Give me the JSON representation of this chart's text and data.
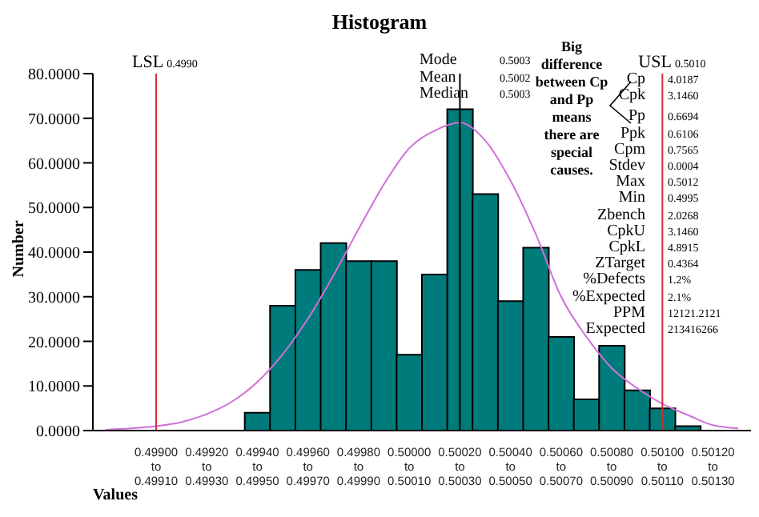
{
  "chart_data": {
    "type": "bar",
    "title": "Histogram",
    "xlabel": "Values",
    "ylabel": "Number",
    "color": "#007b7b",
    "categories": [
      null,
      null,
      "0.49900 to 0.49910",
      null,
      "0.49920 to 0.49930",
      null,
      "0.49940 to 0.49950",
      null,
      "0.49960 to 0.49970",
      null,
      "0.49980 to 0.49990",
      null,
      "0.50000 to 0.50010",
      null,
      "0.50020 to 0.50030",
      null,
      "0.50040 to 0.50050",
      null,
      "0.50060 to 0.50070",
      null,
      "0.50080 to 0.50090",
      null,
      "0.50100 to 0.50110",
      null,
      "0.50120 to 0.50130",
      null
    ],
    "values": [
      0,
      0,
      0,
      0,
      0,
      0,
      4,
      28,
      36,
      42,
      38,
      38,
      17,
      35,
      72,
      53,
      29,
      41,
      21,
      7,
      19,
      9,
      5,
      1,
      0,
      0
    ],
    "series": [
      {
        "type": "line",
        "color": "#d070d8",
        "values": [
          0.2,
          0.5,
          1.0,
          1.9,
          3.7,
          6.5,
          10.9,
          17.1,
          25.1,
          34.7,
          45.2,
          55.2,
          63.3,
          67.2,
          69,
          65,
          56,
          44,
          30,
          21,
          14,
          9.5,
          6,
          3.5,
          1.2,
          0.5
        ]
      }
    ],
    "ylim": [
      0,
      80
    ],
    "yticks": [
      {
        "value": 0,
        "label": "0.0000"
      },
      {
        "value": 10,
        "label": "10.0000"
      },
      {
        "value": 20,
        "label": "20.0000"
      },
      {
        "value": 30,
        "label": "30.0000"
      },
      {
        "value": 40,
        "label": "40.0000"
      },
      {
        "value": 50,
        "label": "50.0000"
      },
      {
        "value": 60,
        "label": "60.0000"
      },
      {
        "value": 70,
        "label": "70.0000"
      },
      {
        "value": 80,
        "label": "80.0000"
      }
    ],
    "ref_lines": [
      {
        "axis": "x",
        "value": "0.49900 to 0.49910",
        "label": "LSL 0.4990",
        "color": "#d03030"
      },
      {
        "axis": "x",
        "value": "0.50020 to 0.50030",
        "color": "#000000"
      },
      {
        "axis": "x",
        "value": "0.50100 to 0.50110",
        "label": "USL 0.5010",
        "color": "#d03030"
      }
    ],
    "annotations": [
      "Mode 0.5003",
      "Mean 0.5002",
      "Median 0.5003",
      "Big difference between Cp and Pp means there are special causes.",
      "Cp 4.0187",
      "Cpk 3.1460",
      "Pp 0.6694",
      "Ppk 0.6106",
      "Cpm 0.7565",
      "Stdev 0.0004",
      "Max 0.5012",
      "Min 0.4995",
      "Zbench 2.0268",
      "CpkU 3.1460",
      "CpkL 4.8915",
      "ZTarget 0.4364",
      "%Defects 1.2%",
      "%Expected 2.1%",
      "PPM 12121.2121",
      "Expected 213416266"
    ]
  }
}
